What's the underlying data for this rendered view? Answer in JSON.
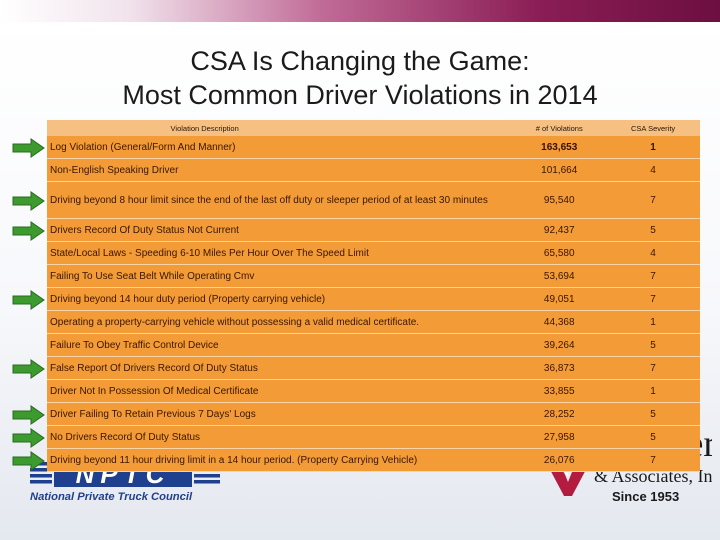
{
  "title": {
    "line1": "CSA Is Changing the Game:",
    "line2": "Most Common Driver Violations in 2014"
  },
  "table": {
    "headers": [
      "Violation Description",
      "# of Violations",
      "CSA Severity"
    ],
    "rows": [
      {
        "desc": "Log Violation (General/Form And Manner)",
        "count": "163,653",
        "severity": "1",
        "arrow": true
      },
      {
        "desc": "Non-English Speaking Driver",
        "count": "101,664",
        "severity": "4",
        "arrow": false
      },
      {
        "desc": "Driving beyond 8 hour limit since the end of the last off duty or sleeper period of at least 30 minutes",
        "count": "95,540",
        "severity": "7",
        "arrow": true
      },
      {
        "desc": "Drivers Record Of Duty Status Not Current",
        "count": "92,437",
        "severity": "5",
        "arrow": true
      },
      {
        "desc": "State/Local Laws - Speeding 6-10 Miles Per Hour Over The Speed Limit",
        "count": "65,580",
        "severity": "4",
        "arrow": false
      },
      {
        "desc": "Failing To Use Seat Belt While Operating Cmv",
        "count": "53,694",
        "severity": "7",
        "arrow": false
      },
      {
        "desc": "Driving beyond 14 hour duty period (Property carrying vehicle)",
        "count": "49,051",
        "severity": "7",
        "arrow": true
      },
      {
        "desc": "Operating a property-carrying vehicle without possessing a valid medical certificate.",
        "count": "44,368",
        "severity": "1",
        "arrow": false
      },
      {
        "desc": "Failure To Obey Traffic Control Device",
        "count": "39,264",
        "severity": "5",
        "arrow": false
      },
      {
        "desc": "False Report Of Drivers Record Of Duty Status",
        "count": "36,873",
        "severity": "7",
        "arrow": true
      },
      {
        "desc": "Driver Not In Possession Of Medical Certificate",
        "count": "33,855",
        "severity": "1",
        "arrow": false
      },
      {
        "desc": "Driver Failing To Retain Previous 7 Days' Logs",
        "count": "28,252",
        "severity": "5",
        "arrow": true
      },
      {
        "desc": "No Drivers Record Of Duty Status",
        "count": "27,958",
        "severity": "5",
        "arrow": true
      },
      {
        "desc": "Driving beyond 11 hour driving limit in a 14 hour period. (Property Carrying Vehicle)",
        "count": "26,076",
        "severity": "7",
        "arrow": true
      }
    ]
  },
  "logo": {
    "abbr": "NPTC",
    "name": "National Private Truck Council"
  },
  "partner": {
    "name_partial": "ler",
    "name_line2": "& Associates, Inc.",
    "since": "Since 1953"
  },
  "colors": {
    "row": "#f39b37",
    "header": "#f6c083",
    "arrow": "#3d9a2e",
    "brand": "#1f3f8f",
    "partner_red": "#b31b3f",
    "band": "#8a1d55"
  }
}
